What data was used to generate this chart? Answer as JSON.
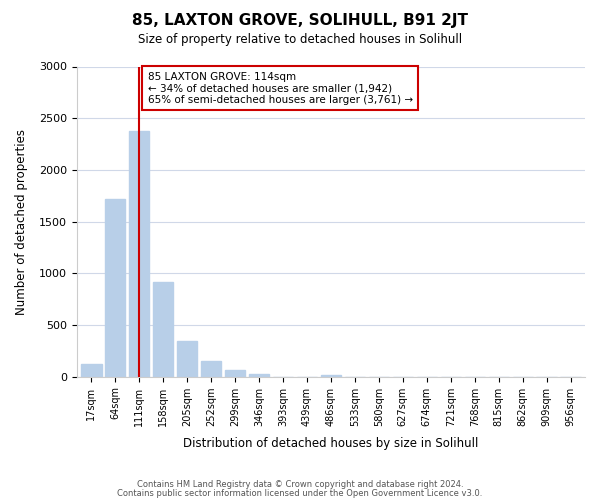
{
  "title": "85, LAXTON GROVE, SOLIHULL, B91 2JT",
  "subtitle": "Size of property relative to detached houses in Solihull",
  "xlabel": "Distribution of detached houses by size in Solihull",
  "ylabel": "Number of detached properties",
  "bin_labels": [
    "17sqm",
    "64sqm",
    "111sqm",
    "158sqm",
    "205sqm",
    "252sqm",
    "299sqm",
    "346sqm",
    "393sqm",
    "439sqm",
    "486sqm",
    "533sqm",
    "580sqm",
    "627sqm",
    "674sqm",
    "721sqm",
    "768sqm",
    "815sqm",
    "862sqm",
    "909sqm",
    "956sqm"
  ],
  "bar_heights": [
    120,
    1720,
    2380,
    920,
    345,
    155,
    65,
    30,
    0,
    0,
    20,
    0,
    0,
    0,
    0,
    0,
    0,
    0,
    0,
    0,
    0
  ],
  "bar_color": "#b8cfe8",
  "vline_x": 2,
  "vline_color": "#cc0000",
  "annotation_line1": "85 LAXTON GROVE: 114sqm",
  "annotation_line2": "← 34% of detached houses are smaller (1,942)",
  "annotation_line3": "65% of semi-detached houses are larger (3,761) →",
  "annotation_box_color": "#ffffff",
  "annotation_box_edge": "#cc0000",
  "ylim": [
    0,
    3000
  ],
  "yticks": [
    0,
    500,
    1000,
    1500,
    2000,
    2500,
    3000
  ],
  "footer_line1": "Contains HM Land Registry data © Crown copyright and database right 2024.",
  "footer_line2": "Contains public sector information licensed under the Open Government Licence v3.0.",
  "background_color": "#ffffff",
  "grid_color": "#d0d8e8"
}
